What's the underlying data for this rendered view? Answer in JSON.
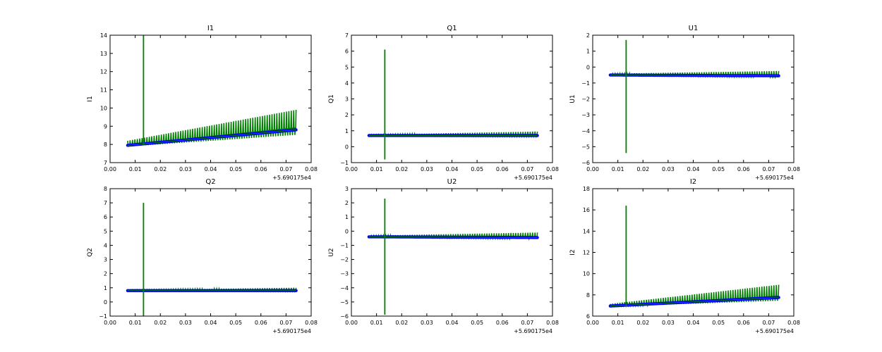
{
  "chart_data": [
    {
      "type": "line",
      "title": "I1",
      "ylabel": "I1",
      "xlabel": "",
      "x_offset_label": "+5.690175e4",
      "xlim": [
        0.0,
        0.08
      ],
      "ylim": [
        7,
        14
      ],
      "x_ticks": [
        "0.00",
        "0.01",
        "0.02",
        "0.03",
        "0.04",
        "0.05",
        "0.06",
        "0.07",
        "0.08"
      ],
      "y_ticks": [
        "7",
        "8",
        "9",
        "10",
        "11",
        "12",
        "13",
        "14"
      ],
      "grid": false,
      "x_range": [
        0.007,
        0.074
      ],
      "spike": {
        "x": 0.0133,
        "low": 7.95,
        "high": 14.0
      },
      "series": [
        {
          "style": "line-markers",
          "color": "#0000ff",
          "baseline_start": 7.95,
          "baseline_end": 8.8
        },
        {
          "style": "line",
          "color": "#008000",
          "baseline_start": 7.95,
          "baseline_end": 8.8,
          "osc_amp_start": 0.25,
          "osc_amp_end": 1.1
        }
      ]
    },
    {
      "type": "line",
      "title": "Q1",
      "ylabel": "Q1",
      "xlabel": "",
      "x_offset_label": "+5.690175e4",
      "xlim": [
        0.0,
        0.08
      ],
      "ylim": [
        -1,
        7
      ],
      "x_ticks": [
        "0.00",
        "0.01",
        "0.02",
        "0.03",
        "0.04",
        "0.05",
        "0.06",
        "0.07",
        "0.08"
      ],
      "y_ticks": [
        "−1",
        "0",
        "1",
        "2",
        "3",
        "4",
        "5",
        "6",
        "7"
      ],
      "grid": false,
      "x_range": [
        0.007,
        0.074
      ],
      "spike": {
        "x": 0.0133,
        "low": -0.8,
        "high": 6.1
      },
      "series": [
        {
          "style": "line-markers",
          "color": "#0000ff",
          "baseline_start": 0.7,
          "baseline_end": 0.7
        },
        {
          "style": "line",
          "color": "#008000",
          "baseline_start": 0.7,
          "baseline_end": 0.7,
          "osc_amp_start": 0.05,
          "osc_amp_end": 0.25
        }
      ]
    },
    {
      "type": "line",
      "title": "U1",
      "ylabel": "U1",
      "xlabel": "",
      "x_offset_label": "+5.690175e4",
      "xlim": [
        0.0,
        0.08
      ],
      "ylim": [
        -6,
        2
      ],
      "x_ticks": [
        "0.00",
        "0.01",
        "0.02",
        "0.03",
        "0.04",
        "0.05",
        "0.06",
        "0.07",
        "0.08"
      ],
      "y_ticks": [
        "−6",
        "−5",
        "−4",
        "−3",
        "−2",
        "−1",
        "0",
        "1",
        "2"
      ],
      "grid": false,
      "x_range": [
        0.007,
        0.074
      ],
      "spike": {
        "x": 0.0133,
        "low": -5.4,
        "high": 1.7
      },
      "series": [
        {
          "style": "line-markers",
          "color": "#0000ff",
          "baseline_start": -0.5,
          "baseline_end": -0.55
        },
        {
          "style": "line",
          "color": "#008000",
          "baseline_start": -0.5,
          "baseline_end": -0.55,
          "osc_amp_start": 0.08,
          "osc_amp_end": 0.3
        }
      ]
    },
    {
      "type": "line",
      "title": "Q2",
      "ylabel": "Q2",
      "xlabel": "",
      "x_offset_label": "+5.690175e4",
      "xlim": [
        0.0,
        0.08
      ],
      "ylim": [
        -1,
        8
      ],
      "x_ticks": [
        "0.00",
        "0.01",
        "0.02",
        "0.03",
        "0.04",
        "0.05",
        "0.06",
        "0.07",
        "0.08"
      ],
      "y_ticks": [
        "−1",
        "0",
        "1",
        "2",
        "3",
        "4",
        "5",
        "6",
        "7",
        "8"
      ],
      "grid": false,
      "x_range": [
        0.007,
        0.074
      ],
      "spike": {
        "x": 0.0133,
        "low": -1.0,
        "high": 7.0
      },
      "series": [
        {
          "style": "line-markers",
          "color": "#0000ff",
          "baseline_start": 0.8,
          "baseline_end": 0.8
        },
        {
          "style": "line",
          "color": "#008000",
          "baseline_start": 0.8,
          "baseline_end": 0.8,
          "osc_amp_start": 0.05,
          "osc_amp_end": 0.2
        }
      ]
    },
    {
      "type": "line",
      "title": "U2",
      "ylabel": "U2",
      "xlabel": "",
      "x_offset_label": "+5.690175e4",
      "xlim": [
        0.0,
        0.08
      ],
      "ylim": [
        -6,
        3
      ],
      "x_ticks": [
        "0.00",
        "0.01",
        "0.02",
        "0.03",
        "0.04",
        "0.05",
        "0.06",
        "0.07",
        "0.08"
      ],
      "y_ticks": [
        "−6",
        "−5",
        "−4",
        "−3",
        "−2",
        "−1",
        "0",
        "1",
        "2",
        "3"
      ],
      "grid": false,
      "x_range": [
        0.007,
        0.074
      ],
      "spike": {
        "x": 0.0133,
        "low": -5.9,
        "high": 2.3
      },
      "series": [
        {
          "style": "line-markers",
          "color": "#0000ff",
          "baseline_start": -0.4,
          "baseline_end": -0.45
        },
        {
          "style": "line",
          "color": "#008000",
          "baseline_start": -0.4,
          "baseline_end": -0.45,
          "osc_amp_start": 0.08,
          "osc_amp_end": 0.35
        }
      ]
    },
    {
      "type": "line",
      "title": "I2",
      "ylabel": "I2",
      "xlabel": "",
      "x_offset_label": "+5.690175e4",
      "xlim": [
        0.0,
        0.08
      ],
      "ylim": [
        6,
        18
      ],
      "x_ticks": [
        "0.00",
        "0.01",
        "0.02",
        "0.03",
        "0.04",
        "0.05",
        "0.06",
        "0.07",
        "0.08"
      ],
      "y_ticks": [
        "6",
        "8",
        "10",
        "12",
        "14",
        "16",
        "18"
      ],
      "grid": false,
      "x_range": [
        0.007,
        0.074
      ],
      "spike": {
        "x": 0.0133,
        "low": 6.9,
        "high": 16.4
      },
      "series": [
        {
          "style": "line-markers",
          "color": "#0000ff",
          "baseline_start": 6.95,
          "baseline_end": 7.75
        },
        {
          "style": "line",
          "color": "#008000",
          "baseline_start": 6.95,
          "baseline_end": 7.75,
          "osc_amp_start": 0.2,
          "osc_amp_end": 1.2
        }
      ]
    }
  ]
}
